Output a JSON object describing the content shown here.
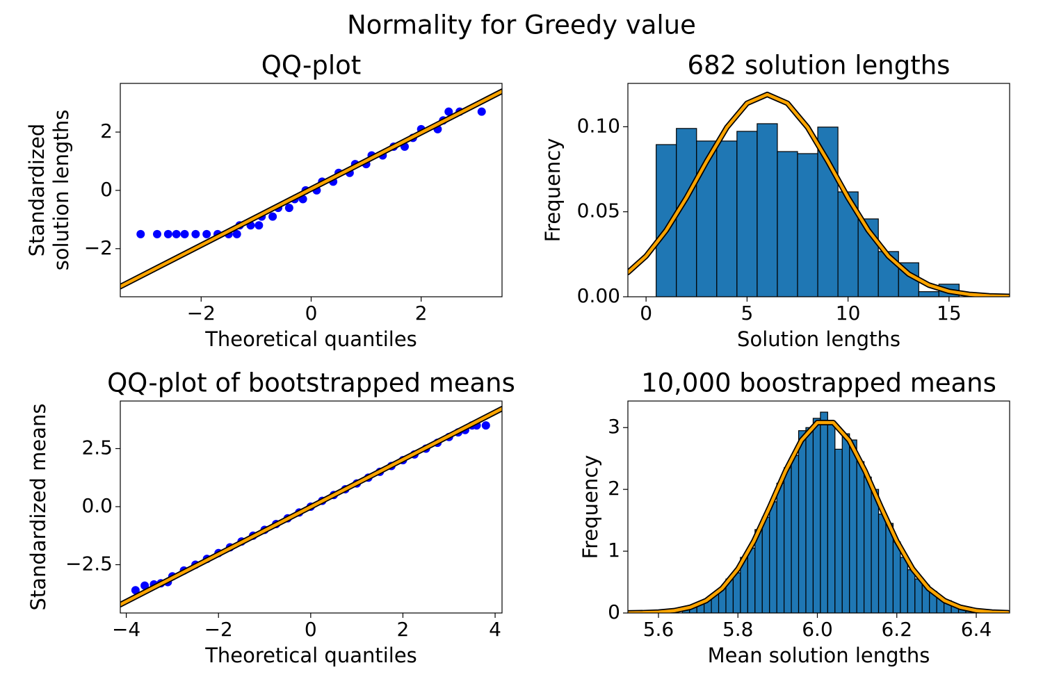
{
  "title": "Normality for Greedy value",
  "chart_data": [
    {
      "type": "qq",
      "title": "QQ-plot",
      "xlabel": "Theoretical quantiles",
      "ylabel": [
        "Standardized",
        "solution lengths"
      ],
      "xlim": [
        -3.47,
        3.47
      ],
      "ylim": [
        -3.65,
        3.67
      ],
      "xticks": [
        {
          "value": -2,
          "label": "−2"
        },
        0,
        2
      ],
      "yticks": [
        {
          "value": -2,
          "label": "−2"
        },
        0,
        2
      ],
      "series": [
        {
          "type": "scatter",
          "color": "#0000ff",
          "x": [
            -3.1,
            -2.8,
            -2.6,
            -2.45,
            -2.3,
            -2.1,
            -1.9,
            -1.7,
            -1.5,
            -1.35,
            -1.3,
            -1.1,
            -0.95,
            -0.9,
            -0.7,
            -0.6,
            -0.4,
            -0.3,
            -0.15,
            -0.1,
            0.1,
            0.2,
            0.4,
            0.5,
            0.7,
            0.8,
            1.0,
            1.1,
            1.3,
            1.5,
            1.7,
            1.85,
            2.0,
            2.3,
            2.4,
            2.5,
            2.7,
            3.1
          ],
          "values": [
            -1.5,
            -1.5,
            -1.5,
            -1.5,
            -1.5,
            -1.5,
            -1.5,
            -1.5,
            -1.5,
            -1.5,
            -1.2,
            -1.2,
            -1.2,
            -0.9,
            -0.9,
            -0.6,
            -0.6,
            -0.3,
            -0.3,
            0,
            0,
            0.3,
            0.3,
            0.6,
            0.6,
            0.9,
            0.9,
            1.2,
            1.2,
            1.5,
            1.5,
            1.8,
            2.1,
            2.1,
            2.4,
            2.7,
            2.7,
            2.7
          ]
        },
        {
          "type": "line",
          "color": "#ffa500",
          "edgecolor": "#000000",
          "x": [
            -3.47,
            3.47
          ],
          "values": [
            -3.3,
            3.4
          ]
        }
      ]
    },
    {
      "type": "histogram",
      "title": "682 solution lengths",
      "xlabel": "Solution lengths",
      "ylabel": [
        "Frequency"
      ],
      "xlim": [
        -0.9,
        18
      ],
      "ylim": [
        0,
        0.1255
      ],
      "xticks": [
        0,
        5,
        10,
        15
      ],
      "yticks": [
        {
          "value": 0,
          "label": "0.00"
        },
        {
          "value": 0.05,
          "label": "0.05"
        },
        {
          "value": 0.1,
          "label": "0.10"
        }
      ],
      "bins": [
        0.5,
        1.5,
        2.5,
        3.5,
        4.5,
        5.5,
        6.5,
        7.5,
        8.5,
        9.5,
        10.5,
        11.5,
        12.5,
        13.5,
        14.5,
        15.5
      ],
      "values": [
        0.0895,
        0.099,
        0.0916,
        0.0916,
        0.0973,
        0.1018,
        0.0854,
        0.0842,
        0.0998,
        0.0617,
        0.0458,
        0.0266,
        0.02,
        0.003,
        0.0074
      ],
      "color": "#1f77b4",
      "edgecolor": "#000000",
      "curve": {
        "color": "#ffa500",
        "edgecolor": "#000000",
        "x": [
          -0.9,
          0,
          1,
          2,
          3,
          4,
          5,
          6,
          7,
          8,
          9,
          10,
          11,
          12,
          13,
          14,
          15,
          16,
          17,
          18
        ],
        "values": [
          0.0143,
          0.0239,
          0.0391,
          0.0583,
          0.0797,
          0.0996,
          0.1138,
          0.119,
          0.1138,
          0.0996,
          0.0797,
          0.0583,
          0.0391,
          0.0239,
          0.0134,
          0.0069,
          0.0032,
          0.0014,
          0.0005,
          0.0002
        ]
      }
    },
    {
      "type": "qq",
      "title": "QQ-plot of bootstrapped means",
      "xlabel": "Theoretical quantiles",
      "ylabel": [
        "Standardized means"
      ],
      "xlim": [
        -4.13,
        4.15
      ],
      "ylim": [
        -4.58,
        4.55
      ],
      "xticks": [
        {
          "value": -4,
          "label": "−4"
        },
        {
          "value": -2,
          "label": "−2"
        },
        0,
        2,
        4
      ],
      "yticks": [
        {
          "value": -2.5,
          "label": "−2.5"
        },
        {
          "value": 0,
          "label": "0.0"
        },
        2.5
      ],
      "series": [
        {
          "type": "scatter",
          "color": "#0000ff",
          "x": [
            -3.8,
            -3.6,
            -3.4,
            -3.25,
            -3.1,
            -3,
            -2.75,
            -2.5,
            -2.25,
            -2,
            -1.75,
            -1.5,
            -1.25,
            -1,
            -0.75,
            -0.5,
            -0.25,
            0,
            0.25,
            0.5,
            0.75,
            1,
            1.25,
            1.5,
            1.75,
            2,
            2.25,
            2.5,
            2.75,
            3,
            3.2,
            3.35,
            3.5,
            3.6,
            3.8
          ],
          "values": [
            -3.6,
            -3.4,
            -3.35,
            -3.3,
            -3.25,
            -3,
            -2.75,
            -2.5,
            -2.25,
            -2,
            -1.75,
            -1.5,
            -1.25,
            -1,
            -0.75,
            -0.5,
            -0.25,
            0,
            0.25,
            0.5,
            0.75,
            1,
            1.25,
            1.5,
            1.75,
            2,
            2.25,
            2.5,
            2.75,
            3,
            3.2,
            3.3,
            3.5,
            3.5,
            3.5
          ]
        },
        {
          "type": "line",
          "color": "#ffa500",
          "edgecolor": "#000000",
          "x": [
            -4.13,
            4.15
          ],
          "values": [
            -4.22,
            4.22
          ]
        }
      ]
    },
    {
      "type": "histogram",
      "title": "10,000 boostrapped means",
      "xlabel": "Mean solution lengths",
      "ylabel": [
        "Frequency"
      ],
      "xlim": [
        5.523,
        6.484
      ],
      "ylim": [
        0,
        3.43
      ],
      "xticks": [
        5.6,
        5.8,
        {
          "value": 6,
          "label": "6.0"
        },
        6.2,
        6.4
      ],
      "yticks": [
        0,
        1,
        2,
        3
      ],
      "bins": [
        5.66,
        5.6783,
        5.6966,
        5.7149,
        5.7332,
        5.7515,
        5.7698,
        5.7881,
        5.8064,
        5.8247,
        5.843,
        5.8613,
        5.8796,
        5.8979,
        5.9162,
        5.9345,
        5.9528,
        5.9711,
        5.9894,
        6.0077,
        6.026,
        6.0443,
        6.0626,
        6.0809,
        6.0992,
        6.1175,
        6.1358,
        6.1541,
        6.1724,
        6.1907,
        6.209,
        6.2273,
        6.2456,
        6.2639,
        6.2822,
        6.3005,
        6.3188,
        6.3371,
        6.3554,
        6.3737,
        6.392
      ],
      "values": [
        0.07,
        0.1,
        0.15,
        0.22,
        0.3,
        0.4,
        0.55,
        0.65,
        0.9,
        1.05,
        1.35,
        1.55,
        1.8,
        2.1,
        2.35,
        2.55,
        2.95,
        3.0,
        3.15,
        3.25,
        3.05,
        2.65,
        2.9,
        2.8,
        2.45,
        2.2,
        2.0,
        1.6,
        1.45,
        1.15,
        0.9,
        0.7,
        0.55,
        0.45,
        0.35,
        0.25,
        0.2,
        0.12,
        0.09,
        0.05
      ],
      "color": "#1f77b4",
      "edgecolor": "#000000",
      "curve": {
        "color": "#ffa500",
        "edgecolor": "#000000",
        "x": [
          5.52,
          5.56,
          5.6,
          5.64,
          5.68,
          5.72,
          5.76,
          5.8,
          5.84,
          5.88,
          5.92,
          5.96,
          6.0,
          6.04,
          6.08,
          6.12,
          6.16,
          6.2,
          6.24,
          6.28,
          6.32,
          6.36,
          6.4,
          6.44,
          6.48
        ],
        "values": [
          0.0015,
          0.0049,
          0.0143,
          0.038,
          0.0918,
          0.2003,
          0.397,
          0.712,
          1.161,
          1.715,
          2.299,
          2.795,
          3.082,
          3.082,
          2.795,
          2.299,
          1.715,
          1.161,
          0.712,
          0.397,
          0.2003,
          0.0918,
          0.038,
          0.0143,
          0.0049
        ]
      }
    }
  ]
}
